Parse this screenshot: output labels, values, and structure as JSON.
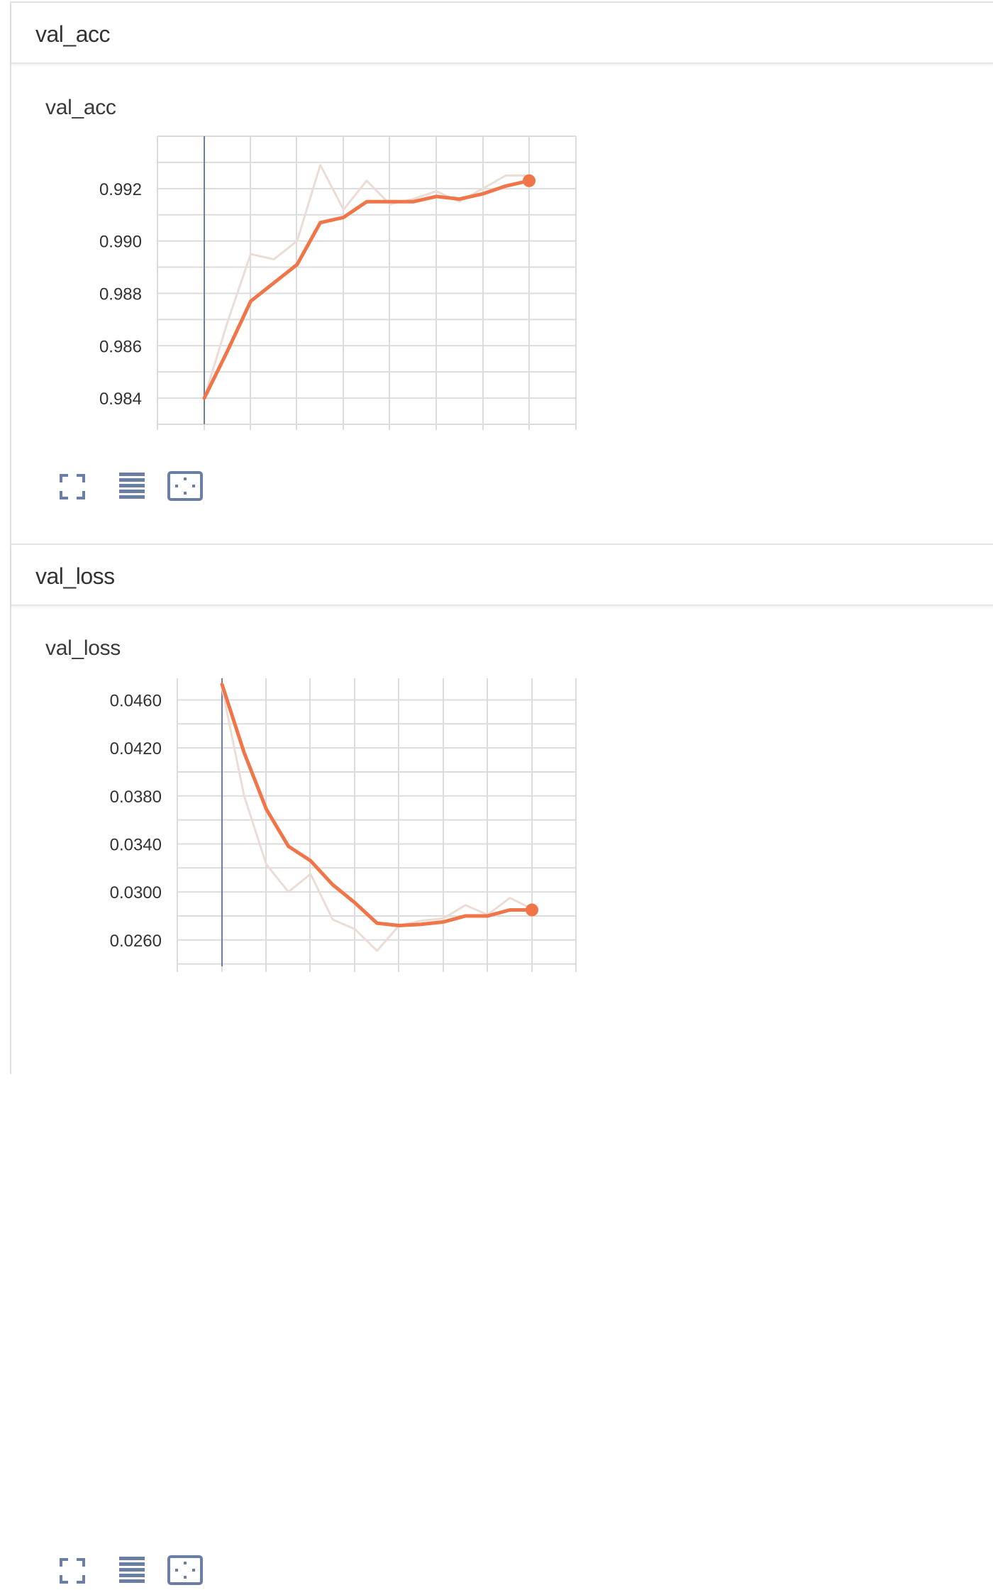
{
  "groups": [
    {
      "title": "val_acc",
      "card_title": "val_acc"
    },
    {
      "title": "val_loss",
      "card_title": "val_loss"
    }
  ],
  "colors": {
    "smoothed": "#f0764a",
    "raw": "#ecdcd6",
    "cursor": "#6b7ea3",
    "grid": "#dcdcdc",
    "icon": "#6b7ea3"
  },
  "toolbar_icons": [
    "fullscreen-icon",
    "toggle-log-scale-icon",
    "fit-domain-icon"
  ],
  "chart_data": [
    {
      "type": "line",
      "title": "val_acc",
      "yticks": [
        "0.984",
        "0.986",
        "0.988",
        "0.990",
        "0.992"
      ],
      "ylim": [
        0.983,
        0.994
      ],
      "x": [
        0,
        1,
        2,
        3,
        4,
        5,
        6,
        7,
        8,
        9,
        10,
        11,
        12,
        13,
        14
      ],
      "series": [
        {
          "values": [
            0.984,
            0.9869,
            0.9895,
            0.9893,
            0.99,
            0.9929,
            0.9912,
            0.9923,
            0.9914,
            0.9916,
            0.9919,
            0.9915,
            0.992,
            0.9925,
            0.9925
          ]
        },
        {
          "values": [
            0.984,
            0.9858,
            0.9877,
            0.9884,
            0.9891,
            0.9907,
            0.9909,
            0.9915,
            0.9915,
            0.9915,
            0.9917,
            0.9916,
            0.9918,
            0.9921,
            0.9923
          ]
        }
      ]
    },
    {
      "type": "line",
      "title": "val_loss",
      "yticks": [
        "0.0260",
        "0.0300",
        "0.0340",
        "0.0380",
        "0.0420",
        "0.0460"
      ],
      "ylim": [
        0.0238,
        0.0478
      ],
      "x": [
        0,
        1,
        2,
        3,
        4,
        5,
        6,
        7,
        8,
        9,
        10,
        11,
        12,
        13,
        14
      ],
      "series": [
        {
          "values": [
            0.047,
            0.038,
            0.0323,
            0.03,
            0.0315,
            0.0277,
            0.0269,
            0.0251,
            0.0272,
            0.0276,
            0.0278,
            0.0289,
            0.0281,
            0.0295,
            0.0286
          ]
        },
        {
          "values": [
            0.0473,
            0.0416,
            0.0369,
            0.0338,
            0.0326,
            0.0306,
            0.0291,
            0.0274,
            0.0272,
            0.0273,
            0.0275,
            0.028,
            0.028,
            0.0285,
            0.0285
          ]
        }
      ]
    }
  ]
}
